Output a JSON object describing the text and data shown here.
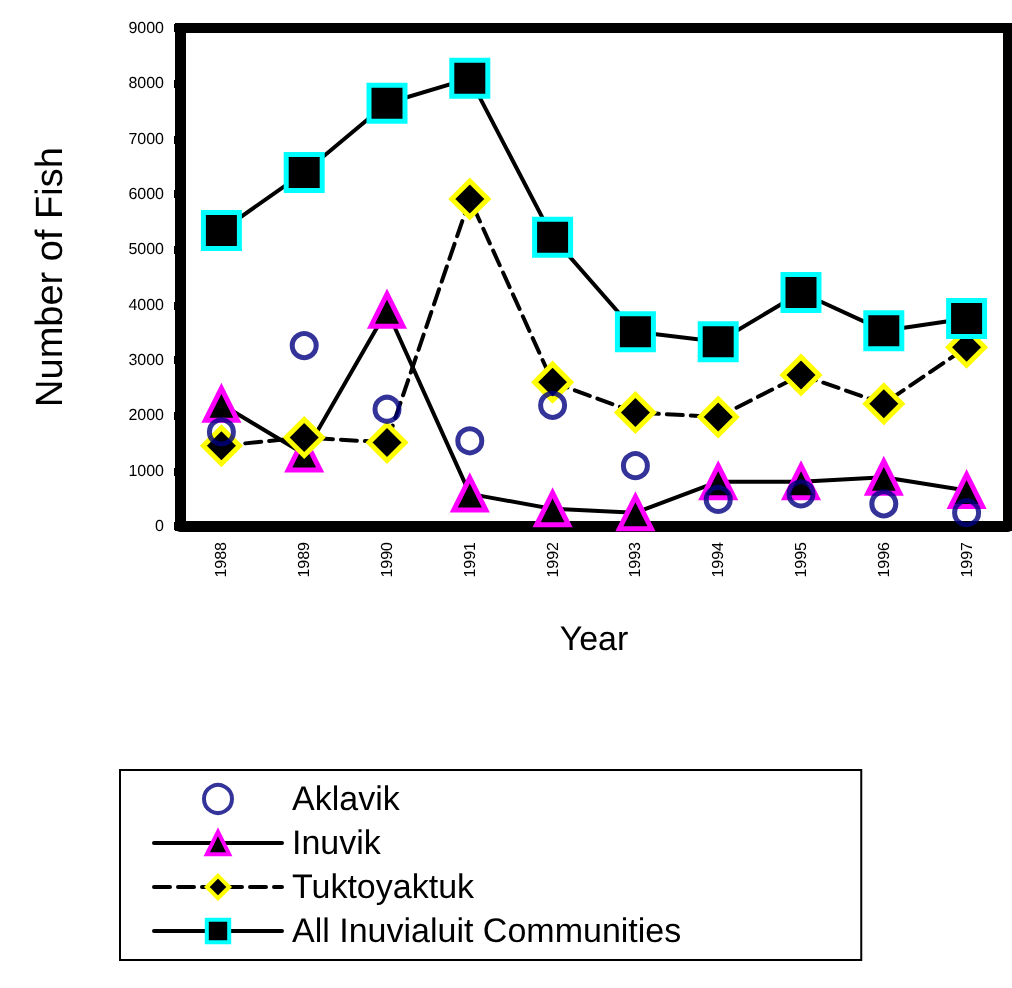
{
  "chart_data": {
    "type": "line",
    "xlabel": "Year",
    "ylabel": "Number of Fish",
    "categories": [
      "1988",
      "1989",
      "1990",
      "1991",
      "1992",
      "1993",
      "1994",
      "1995",
      "1996",
      "1997"
    ],
    "ylim": [
      0,
      9000
    ],
    "yticks": [
      0,
      1000,
      2000,
      3000,
      4000,
      5000,
      6000,
      7000,
      8000,
      9000
    ],
    "grid": false,
    "legend": "bottom",
    "series": [
      {
        "name": "Aklavik",
        "type": "scatter",
        "marker": "circle",
        "color": "#000080",
        "values": [
          1700,
          3260,
          2110,
          1540,
          2180,
          1090,
          480,
          580,
          400,
          240
        ]
      },
      {
        "name": "Inuvik",
        "marker": "triangle",
        "line_style": "solid",
        "color": "#ff00ff",
        "values": [
          2200,
          1300,
          3900,
          580,
          310,
          240,
          800,
          800,
          880,
          640
        ]
      },
      {
        "name": "Tuktoyaktuk",
        "marker": "diamond",
        "line_style": "dashed",
        "color": "#ffff00",
        "values": [
          1450,
          1600,
          1510,
          5910,
          2600,
          2050,
          1970,
          2730,
          2210,
          3230
        ]
      },
      {
        "name": "All Inuvialuit Communities",
        "marker": "square",
        "line_style": "solid",
        "color": "#00ffff",
        "values": [
          5340,
          6390,
          7640,
          8090,
          5220,
          3510,
          3330,
          4220,
          3530,
          3750
        ]
      }
    ]
  }
}
